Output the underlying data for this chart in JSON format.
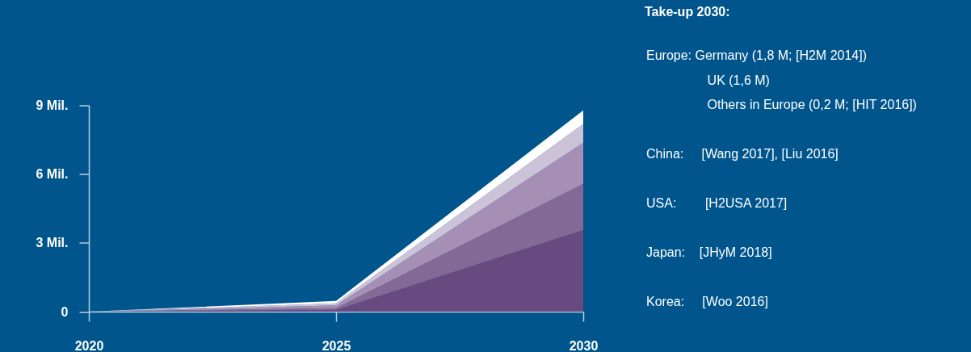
{
  "chart_data": {
    "type": "area",
    "stacked": true,
    "title": "Take-up 2030:",
    "x": [
      2020,
      2025,
      2030
    ],
    "xlim": [
      2020,
      2030
    ],
    "xticks": [
      2020,
      2025,
      2030
    ],
    "ylim": [
      0,
      9
    ],
    "yticks": [
      0,
      {
        "value": 3,
        "label": "3 Mil."
      },
      {
        "value": 6,
        "label": "6 Mil."
      },
      {
        "value": 9,
        "label": "9 Mil."
      }
    ],
    "series": [
      {
        "color": "#674a80",
        "values": [
          0,
          0.07,
          3.56
        ]
      },
      {
        "color": "#836a96",
        "values": [
          0,
          0.08,
          2.01
        ]
      },
      {
        "color": "#a68fb5",
        "values": [
          0,
          0.12,
          1.8
        ]
      },
      {
        "color": "#cdc3d9",
        "values": [
          0,
          0.09,
          0.82
        ]
      },
      {
        "color": "#ffffff",
        "values": [
          0,
          0.11,
          0.59
        ]
      }
    ],
    "grid": false,
    "legend": false,
    "annotations": [
      "Europe: Germany (1,8 M; [H2M 2014])\n                 UK (1,6 M)\n                 Others in Europe (0,2 M; [HIT 2016])",
      "China:     [Wang 2017], [Liu 2016]",
      "USA:        [H2USA 2017]",
      "Japan:    [JHyM 2018]",
      "Korea:     [Woo 2016]"
    ]
  }
}
